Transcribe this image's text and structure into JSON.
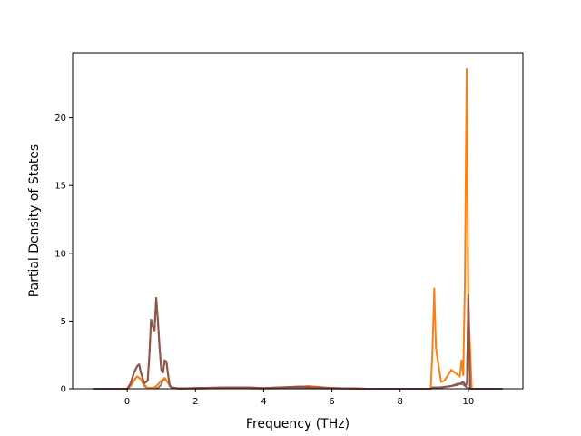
{
  "chart_data": {
    "type": "line",
    "title": "",
    "xlabel": "Frequency (THz)",
    "ylabel": "Partial Density of States",
    "xlim": [
      -1.6,
      11.6
    ],
    "ylim": [
      0,
      24.8
    ],
    "xticks": [
      0,
      2,
      4,
      6,
      8,
      10
    ],
    "yticks": [
      0,
      5,
      10,
      15,
      20
    ],
    "xtick_labels": [
      "0",
      "2",
      "4",
      "6",
      "8",
      "10"
    ],
    "ytick_labels": [
      "0",
      "5",
      "10",
      "15",
      "20"
    ],
    "grid": false,
    "legend": "none",
    "series": [
      {
        "color": "#7f7f7f",
        "x": [
          -1.0,
          0.0,
          0.1,
          0.25,
          0.3,
          0.4,
          0.5,
          0.6,
          0.9,
          1.0,
          1.05,
          1.15,
          1.3,
          1.5,
          2.0,
          3.0,
          4.0,
          5.0,
          6.0,
          7.0,
          8.0,
          8.85,
          8.95,
          9.05,
          9.2,
          9.5,
          9.7,
          9.85,
          9.95,
          10.05,
          10.2,
          11.0
        ],
        "y": [
          0.0,
          0.0,
          0.2,
          0.8,
          0.9,
          0.7,
          0.2,
          0.05,
          0.05,
          0.3,
          0.7,
          0.6,
          0.1,
          0.02,
          0.02,
          0.05,
          0.02,
          0.05,
          0.02,
          0.0,
          0.0,
          0.0,
          0.1,
          0.05,
          0.1,
          0.2,
          0.4,
          0.3,
          0.1,
          0.0,
          0.0,
          0.0
        ]
      },
      {
        "color": "#ff7f0e",
        "x": [
          -1.0,
          0.0,
          0.1,
          0.25,
          0.3,
          0.4,
          0.5,
          0.6,
          0.8,
          0.9,
          1.0,
          1.1,
          1.2,
          1.3,
          1.5,
          2.0,
          3.0,
          4.0,
          5.0,
          5.3,
          6.0,
          7.0,
          8.0,
          8.9,
          8.95,
          9.0,
          9.05,
          9.2,
          9.3,
          9.5,
          9.6,
          9.75,
          9.8,
          9.85,
          9.9,
          9.95,
          10.0,
          10.1,
          11.0
        ],
        "y": [
          0.0,
          0.0,
          0.2,
          0.8,
          0.9,
          0.7,
          0.3,
          0.05,
          0.1,
          0.3,
          0.6,
          0.8,
          0.4,
          0.05,
          0.02,
          0.02,
          0.05,
          0.02,
          0.15,
          0.2,
          0.05,
          0.0,
          0.0,
          0.0,
          3.0,
          7.4,
          3.0,
          0.5,
          0.6,
          1.4,
          1.2,
          0.9,
          2.1,
          1.0,
          8.0,
          23.6,
          6.0,
          0.0,
          0.0
        ]
      },
      {
        "color": "#d62728",
        "x": [
          -1.0,
          0.0,
          0.1,
          0.2,
          0.3,
          0.35,
          0.4,
          0.5,
          0.6,
          0.65,
          0.7,
          0.75,
          0.8,
          0.85,
          0.9,
          0.95,
          1.0,
          1.05,
          1.1,
          1.15,
          1.2,
          1.25,
          1.3,
          1.5,
          2.0,
          3.0,
          3.5,
          4.0,
          4.5,
          5.0,
          5.5,
          6.0,
          7.0,
          8.0,
          8.9,
          9.0,
          9.2,
          9.5,
          9.7,
          9.85,
          9.92,
          9.96,
          10.0,
          10.05,
          11.0
        ],
        "y": [
          0.0,
          0.0,
          0.4,
          1.2,
          1.7,
          1.8,
          1.2,
          0.4,
          0.6,
          2.5,
          5.1,
          4.6,
          4.3,
          6.7,
          5.0,
          3.0,
          1.4,
          1.2,
          2.1,
          2.0,
          1.0,
          0.2,
          0.1,
          0.02,
          0.05,
          0.1,
          0.1,
          0.05,
          0.1,
          0.15,
          0.1,
          0.05,
          0.0,
          0.0,
          0.0,
          0.1,
          0.1,
          0.2,
          0.3,
          0.5,
          0.2,
          0.5,
          6.9,
          0.0,
          0.0
        ]
      },
      {
        "color": "#8c564b",
        "x": [
          -1.0,
          0.0,
          0.1,
          0.2,
          0.3,
          0.35,
          0.4,
          0.5,
          0.6,
          0.65,
          0.7,
          0.75,
          0.8,
          0.85,
          0.9,
          0.95,
          1.0,
          1.05,
          1.1,
          1.15,
          1.2,
          1.25,
          1.3,
          1.5,
          2.0,
          3.0,
          3.5,
          4.0,
          4.5,
          5.0,
          5.5,
          6.0,
          7.0,
          8.0,
          8.9,
          9.0,
          9.2,
          9.5,
          9.7,
          9.85,
          9.92,
          9.96,
          10.0,
          10.05,
          11.0
        ],
        "y": [
          0.0,
          0.0,
          0.4,
          1.2,
          1.7,
          1.8,
          1.2,
          0.4,
          0.6,
          2.5,
          5.1,
          4.6,
          4.3,
          6.7,
          5.0,
          3.0,
          1.4,
          1.2,
          2.1,
          2.0,
          1.0,
          0.2,
          0.1,
          0.02,
          0.05,
          0.1,
          0.1,
          0.05,
          0.1,
          0.15,
          0.1,
          0.05,
          0.0,
          0.0,
          0.0,
          0.1,
          0.1,
          0.2,
          0.3,
          0.5,
          0.2,
          0.5,
          6.9,
          0.0,
          0.0
        ]
      }
    ]
  }
}
